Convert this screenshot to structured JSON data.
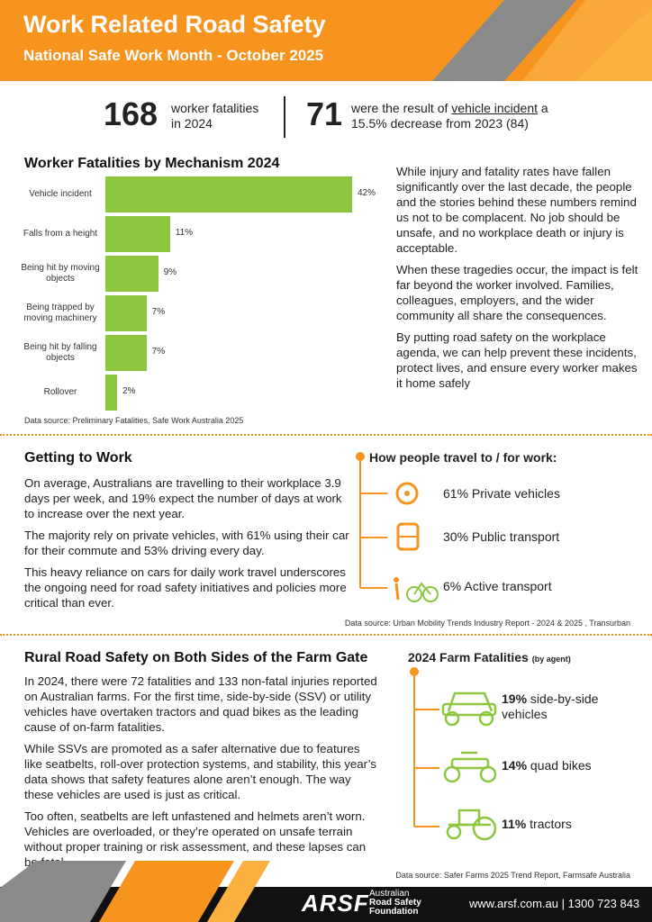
{
  "header": {
    "title": "Work Related Road Safety",
    "subtitle": "National Safe Work Month - October 2025"
  },
  "stats": {
    "fatalities": 168,
    "fatalities_text": "worker fatalities in 2024",
    "vehicle": 71,
    "vehicle_text_before": "were the result of",
    "vehicle_link": "vehicle incident",
    "vehicle_text_after": "a 15.5% decrease from 2023 (84)"
  },
  "chart_data": {
    "type": "bar",
    "orientation": "horizontal",
    "title": "Worker Fatalities by Mechanism 2024",
    "categories": [
      "Vehicle incident",
      "Falls from a height",
      "Being hit by moving objects",
      "Being trapped by moving machinery",
      "Being hit by falling objects",
      "Rollover"
    ],
    "values": [
      42,
      11,
      9,
      7,
      7,
      2
    ],
    "value_labels": [
      "42%",
      "11%",
      "9%",
      "7%",
      "7%",
      "2%"
    ],
    "color": "#8dc63f",
    "source": "Data source: Preliminary Fatalities, Safe Work Australia 2025"
  },
  "intro_paragraphs": [
    "While injury and fatality rates have fallen significantly over the last decade, the people and the stories behind these numbers remind us not to be complacent. No job should be unsafe, and no workplace death or injury is acceptable.",
    "When these tragedies occur, the impact is felt far beyond the worker involved. Families, colleagues, employers, and the wider community all share the consequences.",
    "By putting road safety on the workplace agenda, we can help prevent these incidents, protect lives, and ensure every worker makes it home safely"
  ],
  "getting_to_work": {
    "heading": "Getting to Work",
    "paragraphs": [
      "On average, Australians are travelling to their workplace 3.9 days per week, and 19% expect the number of days at work to increase over the next year.",
      "The majority rely on private vehicles, with 61% using their car for their commute and 53% driving every day.",
      "This heavy reliance on cars for daily work travel underscores the ongoing need for road safety initiatives and policies more critical than ever."
    ],
    "travel_title": "How people travel to / for work:",
    "travel_items": [
      "61% Private vehicles",
      "30% Public transport",
      "6% Active transport"
    ],
    "source": "Data source: Urban Mobility Trends Industry Report - 2024 & 2025 , Transurban"
  },
  "farm": {
    "heading": "Rural Road Safety on Both Sides of the Farm Gate",
    "paragraphs": [
      "In 2024, there were 72 fatalities and 133 non-fatal injuries reported on Australian farms. For the first time, side-by-side (SSV) or utility vehicles have overtaken tractors and quad bikes as the leading cause of on-farm fatalities.",
      "While SSVs are promoted as a safer alternative due to features like seatbelts, roll-over protection systems, and stability, this year’s data shows that safety features alone aren’t enough. The way these vehicles are used is just as critical.",
      "Too often, seatbelts are left unfastened and helmets aren’t worn. Vehicles are overloaded, or they’re operated on unsafe terrain without proper training or risk assessment, and these lapses can be fatal."
    ],
    "fatalities_title": "2024 Farm Fatalities",
    "fatalities_note": "(by agent)",
    "items": [
      {
        "percent": "19%",
        "label": "side-by-side vehicles"
      },
      {
        "percent": "14%",
        "label": "quad bikes"
      },
      {
        "percent": "11%",
        "label": "tractors"
      }
    ],
    "source": "Data source: Safer Farms 2025 Trend Report, Farmsafe Australia"
  },
  "footer": {
    "logo": "ARSF",
    "org_line1": "Australian",
    "org_line2": "Road Safety",
    "org_line3": "Foundation",
    "website": "www.arsf.com.au",
    "separator": "|",
    "phone": "1300 723 843"
  }
}
